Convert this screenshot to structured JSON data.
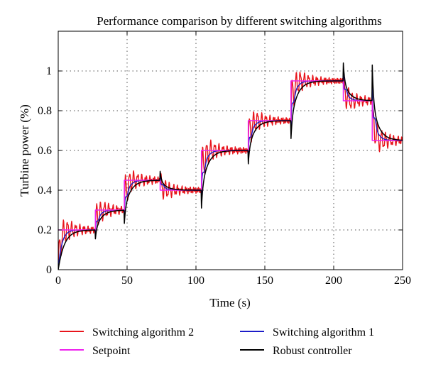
{
  "chart_data": {
    "type": "line",
    "title": "Performance comparison by different switching algorithms",
    "xlabel": "Time (s)",
    "ylabel": "Turbine power (%)",
    "xlim": [
      0,
      250
    ],
    "ylim": [
      0,
      1.2
    ],
    "xticks": [
      0,
      50,
      100,
      150,
      200,
      250
    ],
    "yticks": [
      0,
      0.2,
      0.4,
      0.6,
      0.8,
      1
    ],
    "x_tick_labels": [
      "0",
      "50",
      "100",
      "150",
      "200",
      "250"
    ],
    "y_tick_labels": [
      "0",
      "0.2",
      "0.4",
      "0.6",
      "0.8",
      "1"
    ],
    "grid": "dotted",
    "legend_position": "bottom",
    "setpoint_steps": [
      {
        "t": 0,
        "value": 0.2
      },
      {
        "t": 27,
        "value": 0.3
      },
      {
        "t": 48,
        "value": 0.45
      },
      {
        "t": 74,
        "value": 0.4
      },
      {
        "t": 104,
        "value": 0.6
      },
      {
        "t": 138,
        "value": 0.75
      },
      {
        "t": 169,
        "value": 0.95
      },
      {
        "t": 207,
        "value": 0.85
      },
      {
        "t": 228,
        "value": 0.65
      },
      {
        "t": 250,
        "value": 0.65
      }
    ],
    "series": [
      {
        "name": "Switching algorithm 2",
        "color": "#e8141b"
      },
      {
        "name": "Switching algorithm 1",
        "color": "#1c1cc8"
      },
      {
        "name": "Setpoint",
        "color": "#ee22ee"
      },
      {
        "name": "Robust controller",
        "color": "#000000"
      }
    ]
  }
}
